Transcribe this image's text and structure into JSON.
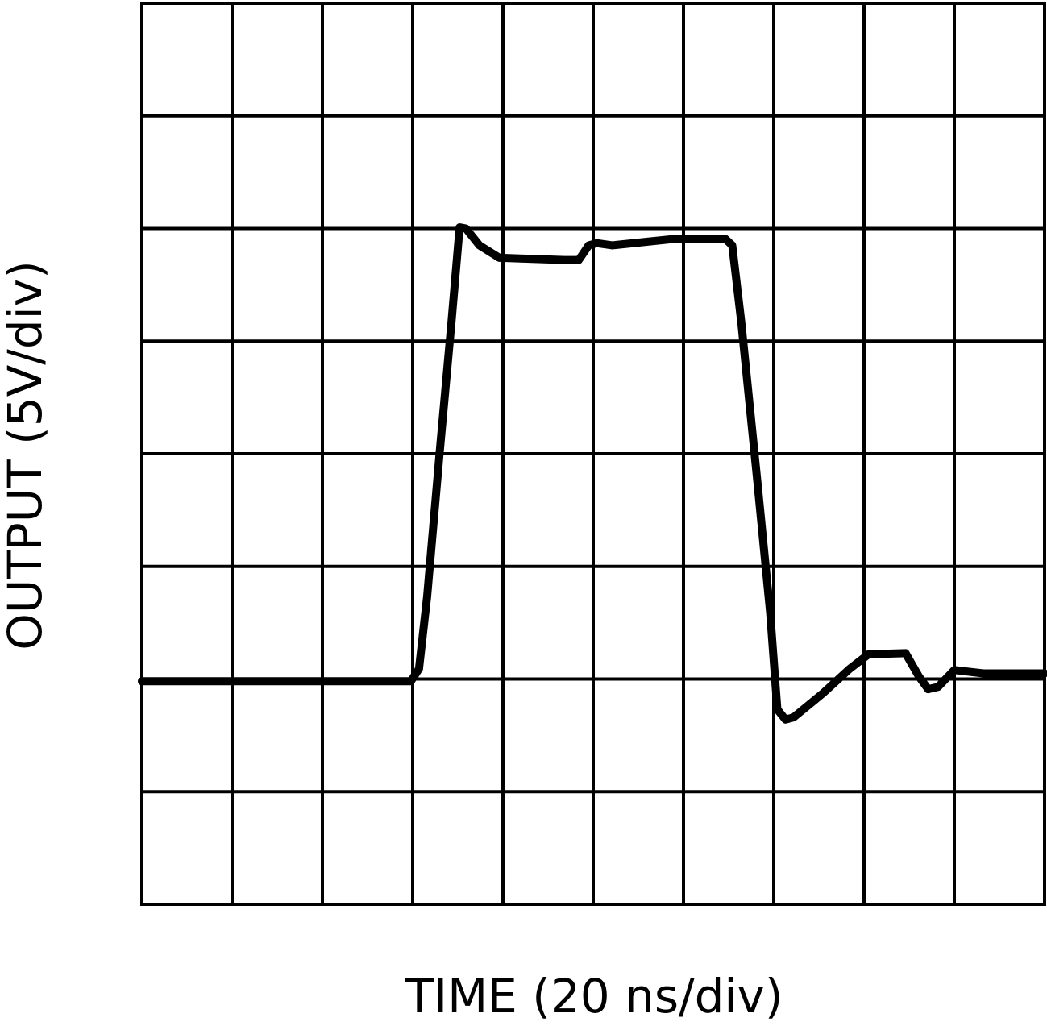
{
  "chart_data": {
    "type": "line",
    "x_label": "TIME (20 ns/div)",
    "y_label": "OUTPUT (5V/div)",
    "xlim": [
      0,
      10
    ],
    "ylim": [
      0,
      8
    ],
    "xticks": [
      0,
      1,
      2,
      3,
      4,
      5,
      6,
      7,
      8,
      9,
      10
    ],
    "yticks": [
      0,
      1,
      2,
      3,
      4,
      5,
      6,
      7,
      8
    ],
    "grid": true,
    "series": [
      {
        "color": "#000000",
        "x": [
          0,
          2.98,
          3.07,
          3.16,
          3.3,
          3.43,
          3.52,
          3.59,
          3.74,
          3.96,
          4.68,
          4.84,
          4.95,
          5.04,
          5.21,
          5.57,
          5.93,
          6.46,
          6.54,
          6.64,
          6.82,
          6.96,
          7.04,
          7.13,
          7.22,
          7.54,
          7.84,
          8.05,
          8.46,
          8.61,
          8.71,
          8.82,
          9.0,
          9.32,
          10
        ],
        "values": [
          1.98,
          1.98,
          2.09,
          2.73,
          4.02,
          5.17,
          6.01,
          6.0,
          5.85,
          5.74,
          5.72,
          5.72,
          5.85,
          5.87,
          5.85,
          5.88,
          5.91,
          5.91,
          5.85,
          5.17,
          3.74,
          2.59,
          1.73,
          1.64,
          1.66,
          1.87,
          2.09,
          2.22,
          2.23,
          2.02,
          1.91,
          1.93,
          2.08,
          2.05,
          2.05
        ]
      }
    ]
  }
}
